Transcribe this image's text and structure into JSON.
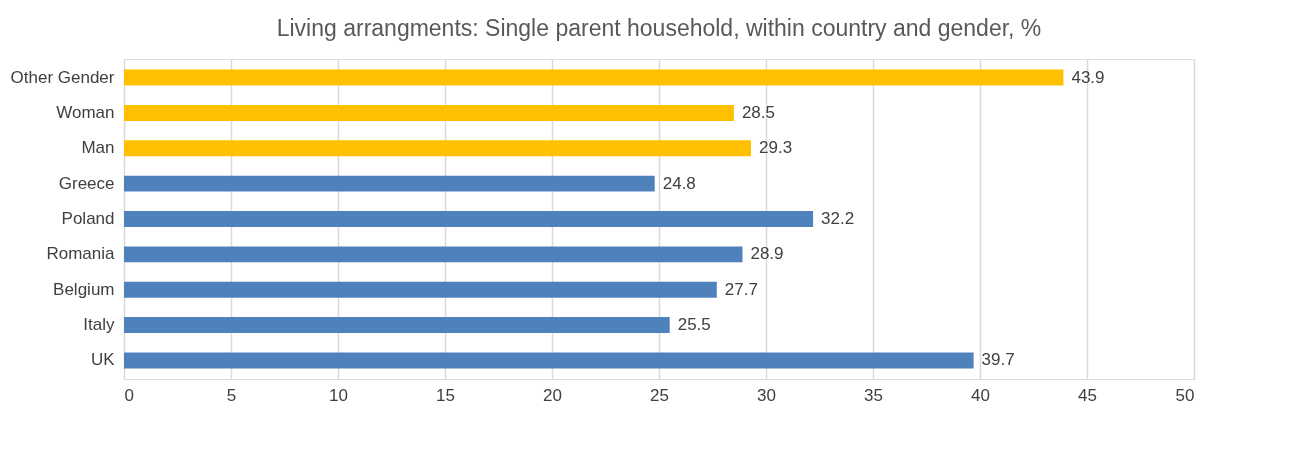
{
  "chart_data": {
    "type": "bar",
    "orientation": "horizontal",
    "title": "Living arrangments: Single parent household, within country and gender, %",
    "categories": [
      "Other Gender",
      "Woman",
      "Man",
      "Greece",
      "Poland",
      "Romania",
      "Belgium",
      "Italy",
      "UK"
    ],
    "values": [
      43.9,
      28.5,
      29.3,
      24.8,
      32.2,
      28.9,
      27.7,
      25.5,
      39.7
    ],
    "colors": [
      "#ffc000",
      "#ffc000",
      "#ffc000",
      "#4f81bd",
      "#4f81bd",
      "#4f81bd",
      "#4f81bd",
      "#4f81bd",
      "#4f81bd"
    ],
    "xlim": [
      0,
      50
    ],
    "xticks": [
      0,
      5,
      10,
      15,
      20,
      25,
      30,
      35,
      40,
      45,
      50
    ],
    "grid": "x",
    "data_labels": true
  }
}
